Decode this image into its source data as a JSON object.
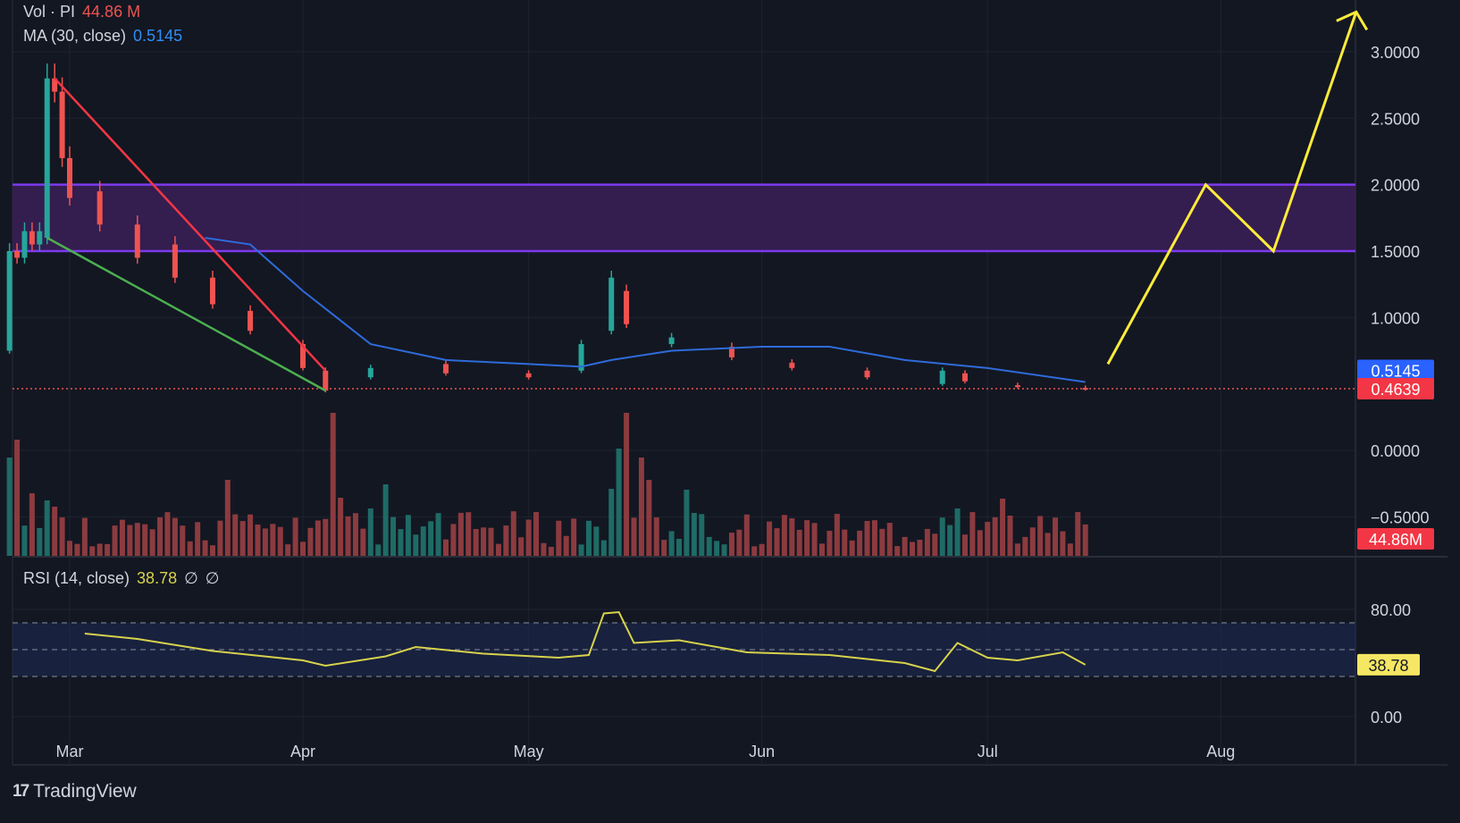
{
  "legend": {
    "vol_label": "Vol · PI",
    "vol_value": "44.86 M",
    "ma_label": "MA (30, close)",
    "ma_value": "0.5145",
    "rsi_label": "RSI (14, close)",
    "rsi_value": "38.78",
    "rsi_extra1": "∅",
    "rsi_extra2": "∅"
  },
  "brand": {
    "logo": "17",
    "name": "TradingView"
  },
  "colors": {
    "background": "#131722",
    "up": "#26a69a",
    "down": "#ef5350",
    "ma": "#2962ff",
    "rsi": "#d7d24c",
    "zone": "#7c3aed",
    "projection": "#ffeb3b",
    "downtrend_line": "#f23645",
    "support_line": "#4caf50"
  },
  "chart_data": [
    {
      "type": "candlestick",
      "title": "PI",
      "x_ticks": [
        "Mar",
        "Apr",
        "May",
        "Jun",
        "Jul",
        "Aug"
      ],
      "y_ticks": [
        "3.0000",
        "2.5000",
        "2.0000",
        "1.5000",
        "1.0000",
        "0.0000",
        "−0.5000"
      ],
      "ylim": [
        -0.5,
        3.0
      ],
      "price_badges": {
        "ma": "0.5145",
        "last": "0.4639",
        "volume": "44.86M"
      },
      "zone": {
        "low": 1.5,
        "high": 2.0
      },
      "moving_average": {
        "name": "MA (30, close)",
        "last": 0.5145
      },
      "last_price": 0.4639,
      "trendlines": [
        {
          "kind": "resistance",
          "from": [
            "Feb 27",
            2.8
          ],
          "to": [
            "Apr 4",
            0.6
          ]
        },
        {
          "kind": "support",
          "from": [
            "Feb 26",
            1.6
          ],
          "to": [
            "Apr 4",
            0.45
          ]
        }
      ],
      "projection_path": [
        [
          "Jul 17",
          0.65
        ],
        [
          "Jul 30",
          2.0
        ],
        [
          "Aug 8",
          1.5
        ],
        [
          "Aug 19",
          3.3
        ]
      ],
      "candles_approx": [
        [
          "Feb 21",
          0.75,
          1.5
        ],
        [
          "Feb 22",
          1.5,
          1.45
        ],
        [
          "Feb 23",
          1.45,
          1.65
        ],
        [
          "Feb 24",
          1.65,
          1.55
        ],
        [
          "Feb 25",
          1.55,
          1.65
        ],
        [
          "Feb 26",
          1.6,
          2.8
        ],
        [
          "Feb 27",
          2.8,
          2.7
        ],
        [
          "Feb 28",
          2.7,
          2.2
        ],
        [
          "Mar 1",
          2.2,
          1.9
        ],
        [
          "Mar 5",
          1.95,
          1.7
        ],
        [
          "Mar 10",
          1.7,
          1.45
        ],
        [
          "Mar 15",
          1.55,
          1.3
        ],
        [
          "Mar 20",
          1.3,
          1.1
        ],
        [
          "Mar 25",
          1.05,
          0.9
        ],
        [
          "Apr 1",
          0.8,
          0.62
        ],
        [
          "Apr 4",
          0.6,
          0.45
        ],
        [
          "Apr 10",
          0.55,
          0.62
        ],
        [
          "Apr 20",
          0.65,
          0.58
        ],
        [
          "May 1",
          0.58,
          0.55
        ],
        [
          "May 8",
          0.6,
          0.8
        ],
        [
          "May 12",
          0.9,
          1.3
        ],
        [
          "May 14",
          1.2,
          0.95
        ],
        [
          "May 20",
          0.8,
          0.85
        ],
        [
          "May 28",
          0.78,
          0.7
        ],
        [
          "Jun 5",
          0.66,
          0.62
        ],
        [
          "Jun 15",
          0.6,
          0.55
        ],
        [
          "Jun 25",
          0.5,
          0.6
        ],
        [
          "Jun 28",
          0.58,
          0.52
        ],
        [
          "Jul 5",
          0.49,
          0.48
        ],
        [
          "Jul 14",
          0.47,
          0.4639
        ]
      ]
    },
    {
      "type": "bar",
      "title": "Vol · PI",
      "last": "44.86 M",
      "note": "volume histogram, colored by candle direction"
    },
    {
      "type": "line",
      "title": "RSI (14, close)",
      "y_ticks": [
        "80.00",
        "0.00"
      ],
      "ylim": [
        0,
        100
      ],
      "bands": [
        70,
        50,
        30
      ],
      "last": 38.78,
      "points": [
        [
          "Mar 3",
          62
        ],
        [
          "Mar 10",
          58
        ],
        [
          "Mar 20",
          49
        ],
        [
          "Apr 1",
          42
        ],
        [
          "Apr 4",
          38
        ],
        [
          "Apr 12",
          45
        ],
        [
          "Apr 16",
          52
        ],
        [
          "Apr 25",
          47
        ],
        [
          "May 5",
          44
        ],
        [
          "May 9",
          46
        ],
        [
          "May 11",
          77
        ],
        [
          "May 13",
          78
        ],
        [
          "May 15",
          55
        ],
        [
          "May 21",
          57
        ],
        [
          "May 30",
          48
        ],
        [
          "Jun 10",
          46
        ],
        [
          "Jun 20",
          40
        ],
        [
          "Jun 24",
          34
        ],
        [
          "Jun 27",
          55
        ],
        [
          "Jul 1",
          44
        ],
        [
          "Jul 5",
          42
        ],
        [
          "Jul 11",
          48
        ],
        [
          "Jul 14",
          38.78
        ]
      ]
    }
  ]
}
